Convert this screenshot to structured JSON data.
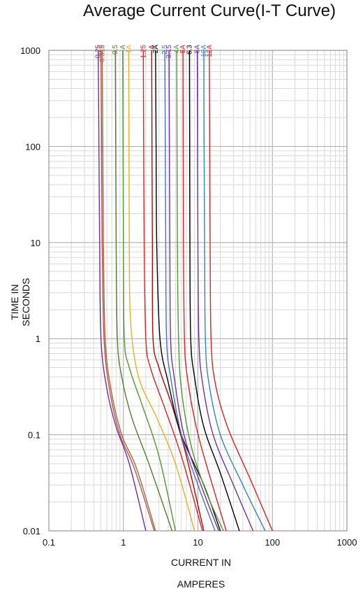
{
  "chart_data": {
    "type": "line",
    "title": "Average Current Curve(I-T Curve)",
    "xlabel_line1": "CURRENT IN",
    "xlabel_line2": "AMPERES",
    "ylabel_line1": "TIME IN",
    "ylabel_line2": "SECONDS",
    "x_scale": "log",
    "y_scale": "log",
    "xlim": [
      0.1,
      1000
    ],
    "ylim": [
      0.01,
      1000
    ],
    "x_ticks": [
      "0.1",
      "1",
      "10",
      "100",
      "1000"
    ],
    "y_ticks": [
      "0.01",
      "0.1",
      "1",
      "10",
      "100",
      "1000"
    ],
    "grid": true,
    "series": [
      {
        "name": "0.25",
        "color": "#7030a0",
        "points": [
          [
            0.46,
            1000
          ],
          [
            0.47,
            100
          ],
          [
            0.48,
            10
          ],
          [
            0.5,
            1
          ],
          [
            0.6,
            0.3
          ],
          [
            0.8,
            0.12
          ],
          [
            1.2,
            0.05
          ],
          [
            2.0,
            0.01
          ]
        ]
      },
      {
        "name": "0.3",
        "color": "#c0504d",
        "points": [
          [
            0.5,
            1000
          ],
          [
            0.51,
            100
          ],
          [
            0.52,
            10
          ],
          [
            0.55,
            1
          ],
          [
            0.65,
            0.3
          ],
          [
            0.9,
            0.1
          ],
          [
            1.4,
            0.045
          ],
          [
            2.6,
            0.01
          ]
        ]
      },
      {
        "name": "0.315",
        "color": "#9e6b3d",
        "points": [
          [
            0.52,
            1000
          ],
          [
            0.53,
            100
          ],
          [
            0.54,
            10
          ],
          [
            0.57,
            1
          ],
          [
            0.68,
            0.3
          ],
          [
            0.95,
            0.1
          ],
          [
            1.5,
            0.045
          ],
          [
            2.7,
            0.01
          ]
        ]
      },
      {
        "name": "0.5",
        "color": "#4f7f2f",
        "points": [
          [
            0.78,
            1000
          ],
          [
            0.79,
            100
          ],
          [
            0.8,
            10
          ],
          [
            0.83,
            1
          ],
          [
            0.95,
            0.4
          ],
          [
            1.3,
            0.15
          ],
          [
            2.2,
            0.05
          ],
          [
            4.5,
            0.01
          ]
        ]
      },
      {
        "name": "A",
        "color": "#4f9a2f",
        "points": [
          [
            0.98,
            1000
          ],
          [
            0.99,
            100
          ],
          [
            1.0,
            10
          ],
          [
            1.03,
            1
          ],
          [
            1.2,
            0.5
          ],
          [
            1.8,
            0.2
          ],
          [
            3.0,
            0.06
          ],
          [
            5.0,
            0.01
          ]
        ]
      },
      {
        "name": "1A",
        "color": "#e8b020",
        "points": [
          [
            1.18,
            1000
          ],
          [
            1.19,
            100
          ],
          [
            1.2,
            10
          ],
          [
            1.25,
            1.5
          ],
          [
            1.6,
            0.4
          ],
          [
            2.8,
            0.15
          ],
          [
            5.0,
            0.05
          ],
          [
            9.0,
            0.01
          ]
        ]
      },
      {
        "name": "1.25",
        "color": "#e02020",
        "points": [
          [
            1.85,
            1000
          ],
          [
            1.87,
            100
          ],
          [
            1.9,
            10
          ],
          [
            2.0,
            1
          ],
          [
            2.3,
            0.5
          ],
          [
            3.5,
            0.2
          ],
          [
            6.0,
            0.06
          ],
          [
            11.5,
            0.01
          ]
        ]
      },
      {
        "name": "A",
        "color": "#c00000",
        "points": [
          [
            2.4,
            1000
          ],
          [
            2.42,
            100
          ],
          [
            2.45,
            10
          ],
          [
            2.5,
            1
          ],
          [
            3.0,
            0.5
          ],
          [
            4.5,
            0.2
          ],
          [
            7.0,
            0.06
          ],
          [
            12.0,
            0.01
          ]
        ]
      },
      {
        "name": "2A",
        "color": "#000000",
        "points": [
          [
            2.7,
            1000
          ],
          [
            2.75,
            100
          ],
          [
            2.8,
            10
          ],
          [
            3.1,
            1
          ],
          [
            4.0,
            0.35
          ],
          [
            6.0,
            0.1
          ],
          [
            12.0,
            0.03
          ],
          [
            20.0,
            0.01
          ]
        ]
      },
      {
        "name": "2.5",
        "color": "#4472c4",
        "points": [
          [
            3.6,
            1000
          ],
          [
            3.65,
            100
          ],
          [
            3.7,
            10
          ],
          [
            3.8,
            1
          ],
          [
            4.3,
            0.4
          ],
          [
            6.0,
            0.1
          ],
          [
            10.0,
            0.03
          ],
          [
            17.0,
            0.01
          ]
        ]
      },
      {
        "name": "3.15",
        "color": "#7030a0",
        "points": [
          [
            4.1,
            1000
          ],
          [
            4.15,
            100
          ],
          [
            4.2,
            10
          ],
          [
            4.3,
            1
          ],
          [
            4.8,
            0.4
          ],
          [
            6.5,
            0.1
          ],
          [
            11.0,
            0.03
          ],
          [
            19.0,
            0.01
          ]
        ]
      },
      {
        "name": "4A",
        "color": "#4f9a2f",
        "points": [
          [
            5.2,
            1000
          ],
          [
            5.25,
            100
          ],
          [
            5.3,
            10
          ],
          [
            5.5,
            1
          ],
          [
            6.0,
            0.3
          ],
          [
            8.0,
            0.08
          ],
          [
            13.0,
            0.025
          ],
          [
            22.0,
            0.01
          ]
        ]
      },
      {
        "name": "5A",
        "color": "#e02020",
        "points": [
          [
            6.3,
            1000
          ],
          [
            6.35,
            100
          ],
          [
            6.4,
            10
          ],
          [
            6.6,
            1
          ],
          [
            7.2,
            0.4
          ],
          [
            9.5,
            0.12
          ],
          [
            14.0,
            0.04
          ],
          [
            24.0,
            0.01
          ]
        ]
      },
      {
        "name": "6.3",
        "color": "#000000",
        "points": [
          [
            7.7,
            1000
          ],
          [
            7.75,
            100
          ],
          [
            7.8,
            10
          ],
          [
            8.0,
            1
          ],
          [
            9.0,
            0.4
          ],
          [
            12.0,
            0.12
          ],
          [
            20.0,
            0.04
          ],
          [
            36.0,
            0.01
          ]
        ]
      },
      {
        "name": "8A",
        "color": "#7030a0",
        "points": [
          [
            9.8,
            1000
          ],
          [
            9.9,
            100
          ],
          [
            10.0,
            10
          ],
          [
            10.3,
            1
          ],
          [
            11.5,
            0.35
          ],
          [
            16.0,
            0.1
          ],
          [
            30.0,
            0.03
          ],
          [
            55.0,
            0.01
          ]
        ]
      },
      {
        "name": "10A",
        "color": "#2e86c1",
        "points": [
          [
            12.0,
            1000
          ],
          [
            12.1,
            100
          ],
          [
            12.3,
            10
          ],
          [
            12.6,
            1
          ],
          [
            14.0,
            0.35
          ],
          [
            20.0,
            0.1
          ],
          [
            40.0,
            0.03
          ],
          [
            80.0,
            0.01
          ]
        ]
      },
      {
        "name": "12A",
        "color": "#e02020",
        "points": [
          [
            14.2,
            1000
          ],
          [
            14.4,
            100
          ],
          [
            14.6,
            10
          ],
          [
            15.0,
            1
          ],
          [
            17.0,
            0.35
          ],
          [
            25.0,
            0.12
          ],
          [
            50.0,
            0.035
          ],
          [
            100.0,
            0.01
          ]
        ]
      }
    ]
  }
}
